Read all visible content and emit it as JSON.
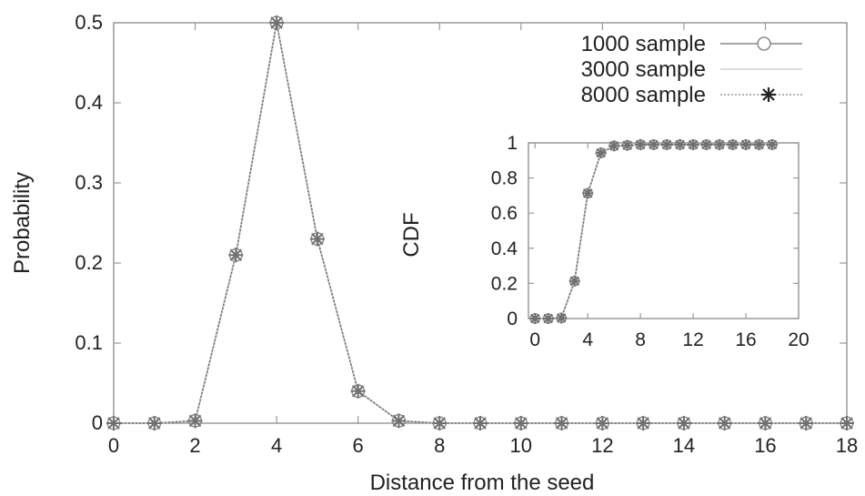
{
  "chart_data": [
    {
      "type": "line",
      "xlabel": "Distance from the seed",
      "ylabel": "Probability",
      "xlim": [
        0,
        18
      ],
      "ylim": [
        0,
        0.5
      ],
      "xticks": [
        0,
        2,
        4,
        6,
        8,
        10,
        12,
        14,
        16,
        18
      ],
      "xtick_labels": [
        "0",
        "2",
        "4",
        "6",
        "8",
        "10",
        "12",
        "14",
        "16",
        "18"
      ],
      "yticks": [
        0,
        0.1,
        0.2,
        0.3,
        0.4,
        0.5
      ],
      "ytick_labels": [
        "0",
        "0.1",
        "0.2",
        "0.3",
        "0.4",
        "0.5"
      ],
      "grid": false,
      "legend_position": "top-right",
      "x": [
        0,
        1,
        2,
        3,
        4,
        5,
        6,
        7,
        8,
        9,
        10,
        11,
        12,
        13,
        14,
        15,
        16,
        17,
        18
      ],
      "series": [
        {
          "name": "1000 sample",
          "marker": "circle",
          "color": "#8a8a8a",
          "values": [
            0,
            0,
            0.003,
            0.21,
            0.5,
            0.23,
            0.04,
            0.003,
            0,
            0,
            0,
            0,
            0,
            0,
            0,
            0,
            0,
            0,
            0
          ]
        },
        {
          "name": "3000 sample",
          "marker": "none",
          "color": "#c8c8c8",
          "values": [
            0,
            0,
            0.003,
            0.21,
            0.5,
            0.23,
            0.04,
            0.003,
            0,
            0,
            0,
            0,
            0,
            0,
            0,
            0,
            0,
            0,
            0
          ]
        },
        {
          "name": "8000 sample",
          "marker": "asterisk",
          "color": "#707070",
          "values": [
            0,
            0,
            0.003,
            0.21,
            0.5,
            0.23,
            0.04,
            0.003,
            0,
            0,
            0,
            0,
            0,
            0,
            0,
            0,
            0,
            0,
            0
          ]
        }
      ]
    },
    {
      "type": "line",
      "xlabel": "",
      "ylabel": "CDF",
      "xlim": [
        -0.5,
        20
      ],
      "ylim": [
        0,
        1
      ],
      "xticks": [
        0,
        4,
        8,
        12,
        16,
        20
      ],
      "xtick_labels": [
        "0",
        "4",
        "8",
        "12",
        "16",
        "20"
      ],
      "yticks": [
        0,
        0.2,
        0.4,
        0.6,
        0.8,
        1
      ],
      "ytick_labels": [
        "0",
        "0.2",
        "0.4",
        "0.6",
        "0.8",
        "1"
      ],
      "grid": false,
      "x": [
        0,
        1,
        2,
        3,
        4,
        5,
        6,
        7,
        8,
        9,
        10,
        11,
        12,
        13,
        14,
        15,
        16,
        17,
        18
      ],
      "series": [
        {
          "name": "1000 sample",
          "marker": "circle",
          "color": "#8a8a8a",
          "values": [
            0,
            0,
            0.003,
            0.213,
            0.713,
            0.943,
            0.983,
            0.986,
            0.99,
            0.99,
            0.99,
            0.99,
            0.99,
            0.99,
            0.99,
            0.99,
            0.99,
            0.99,
            0.99
          ]
        },
        {
          "name": "3000 sample",
          "marker": "none",
          "color": "#c8c8c8",
          "values": [
            0,
            0,
            0.003,
            0.213,
            0.713,
            0.943,
            0.983,
            0.986,
            0.99,
            0.99,
            0.99,
            0.99,
            0.99,
            0.99,
            0.99,
            0.99,
            0.99,
            0.99,
            0.99
          ]
        },
        {
          "name": "8000 sample",
          "marker": "asterisk",
          "color": "#707070",
          "values": [
            0,
            0,
            0.003,
            0.213,
            0.713,
            0.943,
            0.983,
            0.986,
            0.99,
            0.99,
            0.99,
            0.99,
            0.99,
            0.99,
            0.99,
            0.99,
            0.99,
            0.99,
            0.99
          ]
        }
      ]
    }
  ]
}
